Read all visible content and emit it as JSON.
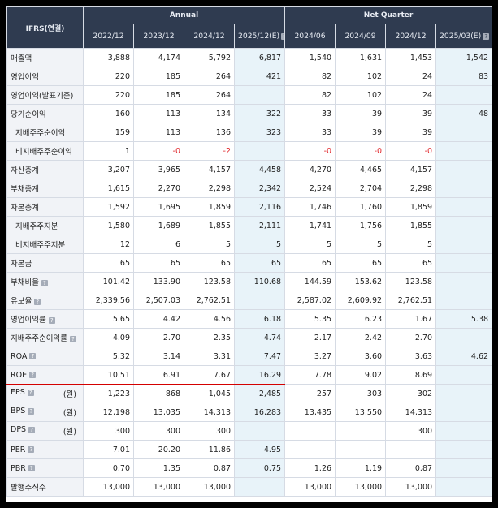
{
  "header": {
    "corner": "IFRS(연결)",
    "group_annual": "Annual",
    "group_quarter": "Net Quarter",
    "periods": [
      "2022/12",
      "2023/12",
      "2024/12",
      "2025/12(E)",
      "2024/06",
      "2024/09",
      "2024/12",
      "2025/03(E)"
    ]
  },
  "rows": [
    {
      "label": "매출액",
      "values": [
        "3,888",
        "4,174",
        "5,792",
        "6,817",
        "1,540",
        "1,631",
        "1,453",
        "1,542"
      ],
      "redline": true
    },
    {
      "label": "영업이익",
      "values": [
        "220",
        "185",
        "264",
        "421",
        "82",
        "102",
        "24",
        "83"
      ]
    },
    {
      "label": "영업이익(발표기준)",
      "values": [
        "220",
        "185",
        "264",
        "",
        "82",
        "102",
        "24",
        ""
      ]
    },
    {
      "label": "당기순이익",
      "values": [
        "160",
        "113",
        "134",
        "322",
        "33",
        "39",
        "39",
        "48"
      ],
      "redline_partial": true
    },
    {
      "label": "지배주주순이익",
      "values": [
        "159",
        "113",
        "136",
        "323",
        "33",
        "39",
        "39",
        ""
      ],
      "indent": true
    },
    {
      "label": "비지배주주순이익",
      "values": [
        "1",
        "-0",
        "-2",
        "",
        "-0",
        "-0",
        "-0",
        ""
      ],
      "indent": true
    },
    {
      "label": "자산총계",
      "values": [
        "3,207",
        "3,965",
        "4,157",
        "4,458",
        "4,270",
        "4,465",
        "4,157",
        ""
      ]
    },
    {
      "label": "부채총계",
      "values": [
        "1,615",
        "2,270",
        "2,298",
        "2,342",
        "2,524",
        "2,704",
        "2,298",
        ""
      ]
    },
    {
      "label": "자본총계",
      "values": [
        "1,592",
        "1,695",
        "1,859",
        "2,116",
        "1,746",
        "1,760",
        "1,859",
        ""
      ]
    },
    {
      "label": "지배주주지분",
      "values": [
        "1,580",
        "1,689",
        "1,855",
        "2,111",
        "1,741",
        "1,756",
        "1,855",
        ""
      ],
      "indent": true
    },
    {
      "label": "비지배주주지분",
      "values": [
        "12",
        "6",
        "5",
        "5",
        "5",
        "5",
        "5",
        ""
      ],
      "indent": true
    },
    {
      "label": "자본금",
      "values": [
        "65",
        "65",
        "65",
        "65",
        "65",
        "65",
        "65",
        ""
      ]
    },
    {
      "label": "부채비율",
      "help": true,
      "values": [
        "101.42",
        "133.90",
        "123.58",
        "110.68",
        "144.59",
        "153.62",
        "123.58",
        ""
      ],
      "redline_partial": true
    },
    {
      "label": "유보율",
      "help": true,
      "values": [
        "2,339.56",
        "2,507.03",
        "2,762.51",
        "",
        "2,587.02",
        "2,609.92",
        "2,762.51",
        ""
      ]
    },
    {
      "label": "영업이익률",
      "help": true,
      "values": [
        "5.65",
        "4.42",
        "4.56",
        "6.18",
        "5.35",
        "6.23",
        "1.67",
        "5.38"
      ]
    },
    {
      "label": "지배주주순이익률",
      "help": true,
      "values": [
        "4.09",
        "2.70",
        "2.35",
        "4.74",
        "2.17",
        "2.42",
        "2.70",
        ""
      ]
    },
    {
      "label": "ROA",
      "help": true,
      "values": [
        "5.32",
        "3.14",
        "3.31",
        "7.47",
        "3.27",
        "3.60",
        "3.63",
        "4.62"
      ]
    },
    {
      "label": "ROE",
      "help": true,
      "values": [
        "10.51",
        "6.91",
        "7.67",
        "16.29",
        "7.78",
        "9.02",
        "8.69",
        ""
      ],
      "redline_partial": true
    },
    {
      "label": "EPS",
      "help": true,
      "unit": "(원)",
      "values": [
        "1,223",
        "868",
        "1,045",
        "2,485",
        "257",
        "303",
        "302",
        ""
      ]
    },
    {
      "label": "BPS",
      "help": true,
      "unit": "(원)",
      "values": [
        "12,198",
        "13,035",
        "14,313",
        "16,283",
        "13,435",
        "13,550",
        "14,313",
        ""
      ]
    },
    {
      "label": "DPS",
      "help": true,
      "unit": "(원)",
      "values": [
        "300",
        "300",
        "300",
        "",
        "",
        "",
        "300",
        ""
      ]
    },
    {
      "label": "PER",
      "help": true,
      "values": [
        "7.01",
        "20.20",
        "11.86",
        "4.95",
        "",
        "",
        "",
        ""
      ]
    },
    {
      "label": "PBR",
      "help": true,
      "values": [
        "0.70",
        "1.35",
        "0.87",
        "0.75",
        "1.26",
        "1.19",
        "0.87",
        ""
      ]
    },
    {
      "label": "발행주식수",
      "values": [
        "13,000",
        "13,000",
        "13,000",
        "",
        "13,000",
        "13,000",
        "13,000",
        ""
      ]
    }
  ],
  "colors": {
    "header_bg": "#2f3b50",
    "estimate_bg": "#e8f3f9",
    "negative": "#e1282d",
    "highlight_line": "#d40000"
  }
}
